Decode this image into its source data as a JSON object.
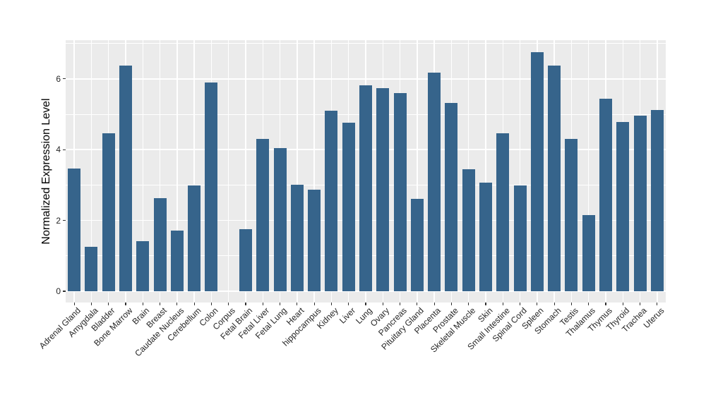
{
  "chart_data": {
    "type": "bar",
    "title": "",
    "xlabel": "",
    "ylabel": "Normalized Expression Level",
    "categories": [
      "Adrenal Gland",
      "Amygdala",
      "Bladder",
      "Bone Marrow",
      "Brain",
      "Breast",
      "Caudate Nucleus",
      "Cerebellum",
      "Colon",
      "Corpus",
      "Fetal Brain",
      "Fetal Liver",
      "Fetal Lung",
      "Heart",
      "hippocampus",
      "Kidney",
      "Liver",
      "Lung",
      "Ovary",
      "Pancreas",
      "Pituitary Gland",
      "Placenta",
      "Prostate",
      "Skeletal Muscle",
      "Skin",
      "Small Intestine",
      "Spinal Cord",
      "Spleen",
      "Stomach",
      "Testis",
      "Thalamus",
      "Thymus",
      "Thyroid",
      "Trachea",
      "Uterus"
    ],
    "values": [
      3.47,
      1.25,
      4.46,
      6.38,
      1.41,
      2.62,
      1.72,
      2.99,
      5.9,
      0,
      1.75,
      4.3,
      4.04,
      3.01,
      2.87,
      5.09,
      4.77,
      5.82,
      5.73,
      5.6,
      2.6,
      6.17,
      5.32,
      3.45,
      3.06,
      4.46,
      2.98,
      6.75,
      6.37,
      4.31,
      2.16,
      5.44,
      4.79,
      4.96,
      5.12
    ],
    "yticks_major": [
      0,
      2,
      4,
      6
    ],
    "yticks_minor": [
      1,
      3,
      5,
      7
    ],
    "ylim": [
      -0.32,
      7.09
    ],
    "grid": "white major+minor horizontal, white major vertical on gray panel",
    "legend": "none",
    "colors": {
      "bar": "#36648B",
      "panel_bg": "#EBEBEB",
      "grid": "#FFFFFF",
      "tick": "#333333",
      "tick_label": "#262626",
      "axis_title": "#000000",
      "figure_bg": "#FFFFFF"
    }
  }
}
